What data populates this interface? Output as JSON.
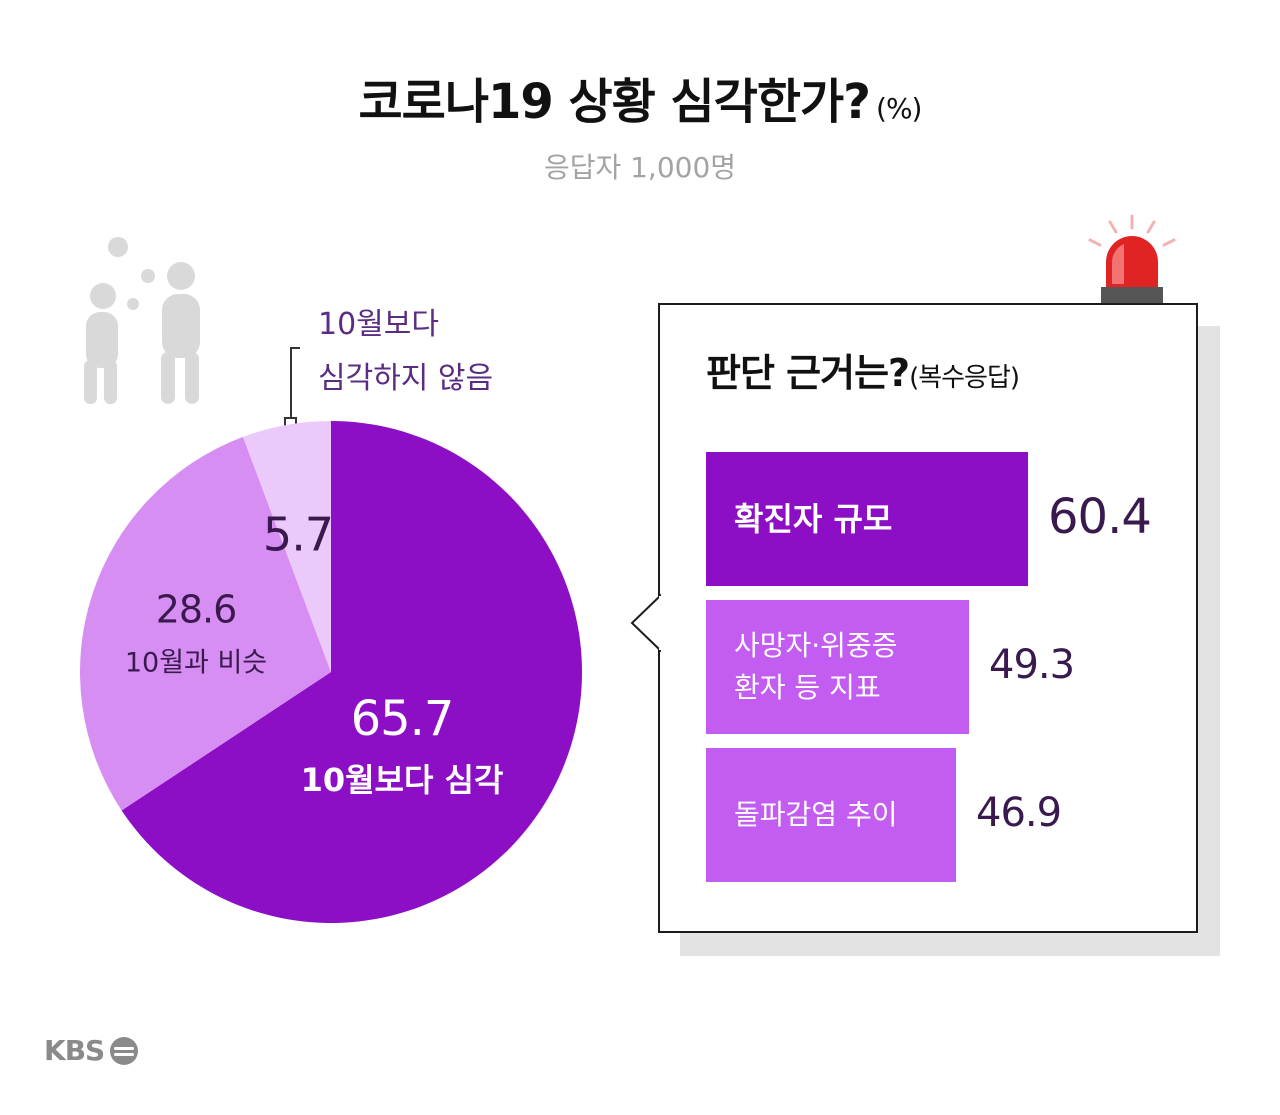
{
  "title": "코로나19 상황 심각한가?",
  "title_unit": "(%)",
  "subtitle": "응답자 1,000명",
  "chart_data": [
    {
      "type": "pie",
      "title": "코로나19 상황 심각한가?",
      "unit": "(%)",
      "slices": [
        {
          "label": "10월보다 심각",
          "value": 65.7,
          "value_label": "65.7",
          "color": "#8c0fc6"
        },
        {
          "label": "10월과 비슷",
          "value": 28.6,
          "value_label": "28.6",
          "color": "#d68ef3"
        },
        {
          "label": "10월보다 심각하지 않음",
          "value": 5.7,
          "value_label": "5.7",
          "color": "#ecc9fb"
        }
      ],
      "callout": [
        "10월보다",
        "심각하지 않음"
      ]
    },
    {
      "type": "bar",
      "title": "판단 근거는?",
      "title_note": "(복수응답)",
      "categories": [
        "확진자 규모",
        "사망자·위중증 환자 등 지표",
        "돌파감염 추이"
      ],
      "category_lines": [
        [
          "확진자 규모"
        ],
        [
          "사망자·위중증",
          "환자 등 지표"
        ],
        [
          "돌파감염 추이"
        ]
      ],
      "values": [
        60.4,
        49.3,
        46.9
      ],
      "value_labels": [
        "60.4",
        "49.3",
        "46.9"
      ],
      "colors": [
        "#8c0fc6",
        "#c35df2",
        "#c35df2"
      ]
    }
  ],
  "logo": "KBS"
}
